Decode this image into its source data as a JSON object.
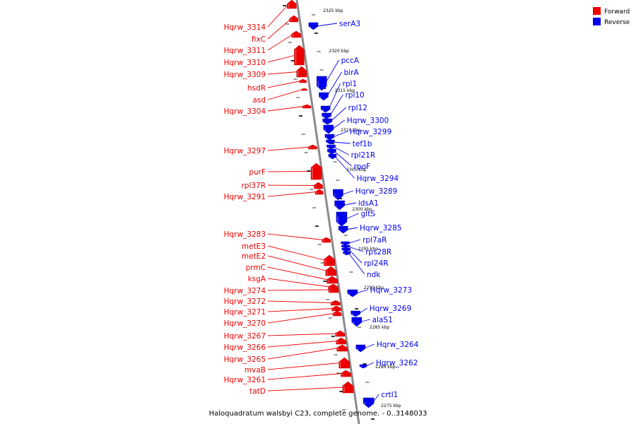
{
  "caption": "Haloquadratum walsbyi C23, complete genome. - 0..3148033",
  "legend": [
    {
      "label": "Forward",
      "color": "#ee0000"
    },
    {
      "label": "Reverse",
      "color": "#0000ee"
    }
  ],
  "colors": {
    "forward": "#ee0000",
    "reverse": "#0000ee",
    "backbone": "#888888"
  },
  "forward_labels": [
    "Hqrw_3314",
    "fixC",
    "Hqrw_3311",
    "Hqrw_3310",
    "Hqrw_3309",
    "hsdR",
    "asd",
    "Hqrw_3304",
    "Hqrw_3297",
    "purF",
    "rpl37R",
    "Hqrw_3291",
    "Hqrw_3283",
    "metE3",
    "metE2",
    "prmC",
    "ksgA",
    "Hqrw_3274",
    "Hqrw_3272",
    "Hqrw_3271",
    "Hqrw_3270",
    "Hqrw_3267",
    "Hqrw_3266",
    "Hqrw_3265",
    "mvaB",
    "Hqrw_3261",
    "tatD"
  ],
  "reverse_labels": [
    "serA3",
    "pccA",
    "birA",
    "rpl1",
    "rpl10",
    "rpl12",
    "Hqrw_3300",
    "Hqrw_3299",
    "tef1b",
    "rpl21R",
    "rpoF",
    "Hqrw_3294",
    "Hqrw_3289",
    "idsA1",
    "gltS",
    "Hqrw_3285",
    "rpl7aR",
    "rps28R",
    "rpl24R",
    "ndk",
    "Hqrw_3273",
    "Hqrw_3269",
    "alaS1",
    "Hqrw_3264",
    "Hqrw_3262",
    "crtI1"
  ],
  "ticks": [
    "2325 kbp",
    "2320 kbp",
    "2315 kbp",
    "2310 kbp",
    "2305 kbp",
    "2300 kbp",
    "2295 kbp",
    "2290 kbp",
    "2285 kbp",
    "2280 kbp",
    "2275 kbp"
  ]
}
